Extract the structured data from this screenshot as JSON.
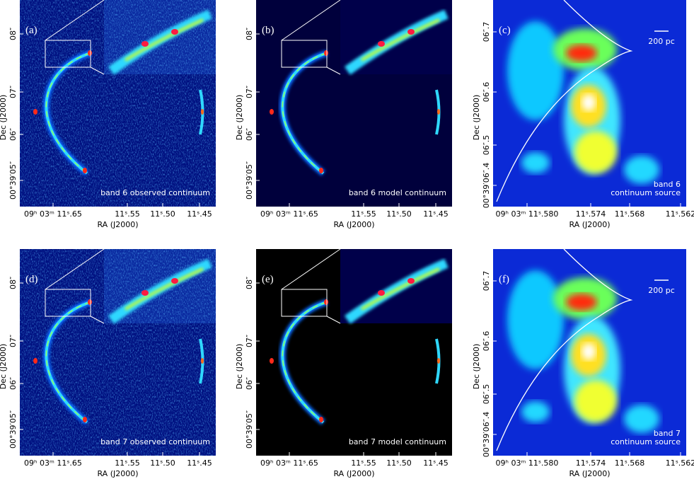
{
  "panels": [
    {
      "label": "(a)",
      "caption": [
        "band 6 observed continuum"
      ],
      "xlabel": "RA (J2000)",
      "ylabel": "Dec (J2000)",
      "xticks": [
        "09ʰ 03ᵐ 11ˢ.65",
        "11ˢ.55",
        "11ˢ.50",
        "11ˢ.45"
      ],
      "yticks": [
        "08″",
        "07″",
        "06″",
        "00°39′05″"
      ]
    },
    {
      "label": "(b)",
      "caption": [
        "band 6 model continuum"
      ],
      "xlabel": "RA (J2000)",
      "ylabel": "Dec (J2000)",
      "xticks": [
        "09ʰ 03ᵐ 11ˢ.65",
        "11ˢ.55",
        "11ˢ.50",
        "11ˢ.45"
      ],
      "yticks": [
        "08″",
        "07″",
        "06″",
        "00°39′05″"
      ]
    },
    {
      "label": "(c)",
      "caption": [
        "band 6",
        "continuum source"
      ],
      "scale_bar": "200 pc",
      "xlabel": "RA (J2000)",
      "ylabel": "Dec (J2000)",
      "xticks": [
        "09ʰ 03ᵐ 11ˢ.580",
        "11ˢ.574",
        "11ˢ.568",
        "11ˢ.562"
      ],
      "yticks": [
        "06″.7",
        "06″.6",
        "06″.5",
        "00°39′06″.4"
      ]
    },
    {
      "label": "(d)",
      "caption": [
        "band 7 observed continuum"
      ],
      "xlabel": "RA (J2000)",
      "ylabel": "Dec (J2000)",
      "xticks": [
        "09ʰ 03ᵐ 11ˢ.65",
        "11ˢ.55",
        "11ˢ.50",
        "11ˢ.45"
      ],
      "yticks": [
        "08″",
        "07″",
        "06″",
        "00°39′05″"
      ]
    },
    {
      "label": "(e)",
      "caption": [
        "band 7 model continuum"
      ],
      "xlabel": "RA (J2000)",
      "ylabel": "Dec (J2000)",
      "xticks": [
        "09ʰ 03ᵐ 11ˢ.65",
        "11ˢ.55",
        "11ˢ.50",
        "11ˢ.45"
      ],
      "yticks": [
        "08″",
        "07″",
        "06″",
        "00°39′05″"
      ]
    },
    {
      "label": "(f)",
      "caption": [
        "band 7",
        "continuum source"
      ],
      "scale_bar": "200 pc",
      "xlabel": "RA (J2000)",
      "ylabel": "Dec (J2000)",
      "xticks": [
        "09ʰ 03ᵐ 11ˢ.580",
        "11ˢ.574",
        "11ˢ.568",
        "11ˢ.562"
      ],
      "yticks": [
        "06″.7",
        "06″.6",
        "06″.5",
        "00°39′06″.4"
      ]
    }
  ]
}
